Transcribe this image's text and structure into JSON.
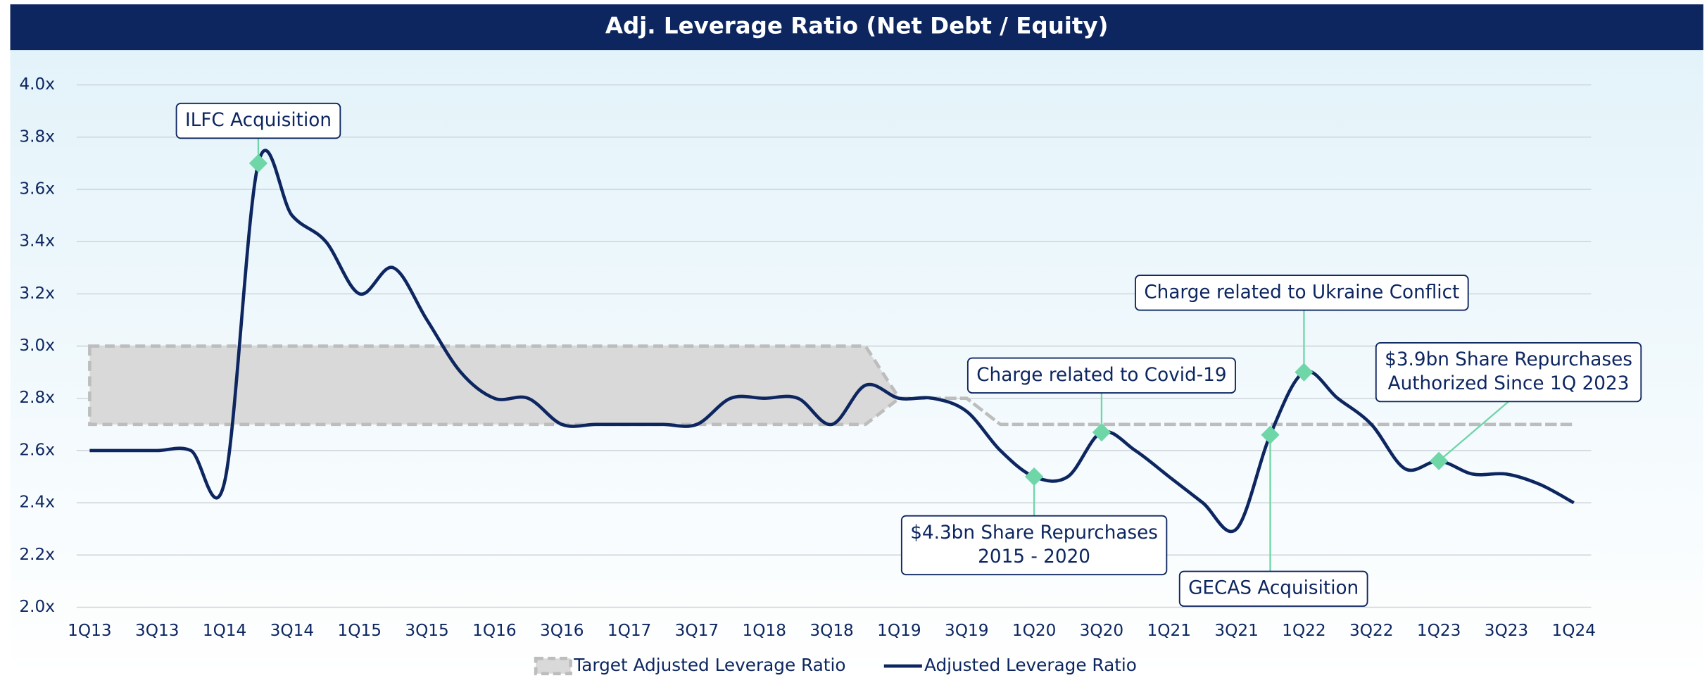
{
  "chart_data": {
    "type": "line",
    "title": "Adj. Leverage Ratio (Net Debt / Equity)",
    "categories": [
      "1Q13",
      null,
      "3Q13",
      null,
      "1Q14",
      null,
      "3Q14",
      null,
      "1Q15",
      null,
      "3Q15",
      null,
      "1Q16",
      null,
      "3Q16",
      null,
      "1Q17",
      null,
      "3Q17",
      null,
      "1Q18",
      null,
      "3Q18",
      null,
      "1Q19",
      null,
      "3Q19",
      null,
      "1Q20",
      null,
      "3Q20",
      null,
      "1Q21",
      null,
      "3Q21",
      null,
      "1Q22",
      null,
      "3Q22",
      null,
      "1Q23",
      null,
      "3Q23",
      null,
      "1Q24"
    ],
    "series": [
      {
        "name": "Target Adjusted Leverage Ratio",
        "color": "#d9d9d9",
        "values": [
          3.0,
          3.0,
          3.0,
          3.0,
          3.0,
          3.0,
          3.0,
          3.0,
          3.0,
          3.0,
          3.0,
          3.0,
          3.0,
          3.0,
          3.0,
          3.0,
          3.0,
          3.0,
          3.0,
          3.0,
          3.0,
          3.0,
          3.0,
          3.0,
          2.8,
          2.8,
          2.8,
          2.7,
          2.7,
          2.7,
          2.7,
          2.7,
          2.7,
          2.7,
          2.7,
          2.7,
          2.7,
          2.7,
          2.7,
          2.7,
          2.7,
          2.7,
          2.7,
          2.7,
          2.7
        ],
        "low": [
          2.7,
          2.7,
          2.7,
          2.7,
          2.7,
          2.7,
          2.7,
          2.7,
          2.7,
          2.7,
          2.7,
          2.7,
          2.7,
          2.7,
          2.7,
          2.7,
          2.7,
          2.7,
          2.7,
          2.7,
          2.7,
          2.7,
          2.7,
          2.7,
          2.8,
          2.8,
          2.8,
          2.7,
          2.7,
          2.7,
          2.7,
          2.7,
          2.7,
          2.7,
          2.7,
          2.7,
          2.7,
          2.7,
          2.7,
          2.7,
          2.7,
          2.7,
          2.7,
          2.7,
          2.7
        ]
      },
      {
        "name": "Adjusted Leverage Ratio",
        "color": "#0d2660",
        "values": [
          2.6,
          2.6,
          2.6,
          2.6,
          2.48,
          3.7,
          3.5,
          3.4,
          3.2,
          3.3,
          3.1,
          2.9,
          2.8,
          2.8,
          2.7,
          2.7,
          2.7,
          2.7,
          2.7,
          2.8,
          2.8,
          2.8,
          2.7,
          2.85,
          2.8,
          2.8,
          2.75,
          2.6,
          2.5,
          2.5,
          2.67,
          2.6,
          2.5,
          2.4,
          2.3,
          2.66,
          2.9,
          2.8,
          2.7,
          2.53,
          2.56,
          2.51,
          2.51,
          2.47,
          2.4
        ]
      }
    ],
    "ylim": [
      2.0,
      4.0
    ],
    "yticks": [
      {
        "value": 2.0,
        "label": "2.0x"
      },
      {
        "value": 2.2,
        "label": "2.2x"
      },
      {
        "value": 2.4,
        "label": "2.4x"
      },
      {
        "value": 2.6,
        "label": "2.6x"
      },
      {
        "value": 2.8,
        "label": "2.8x"
      },
      {
        "value": 3.0,
        "label": "3.0x"
      },
      {
        "value": 3.2,
        "label": "3.2x"
      },
      {
        "value": 3.4,
        "label": "3.4x"
      },
      {
        "value": 3.6,
        "label": "3.6x"
      },
      {
        "value": 3.8,
        "label": "3.8x"
      },
      {
        "value": 4.0,
        "label": "4.0x"
      }
    ],
    "grid": true,
    "legend": "bottom",
    "annotations": [
      [
        "ILFC Acquisition"
      ],
      [
        "Charge related to Covid-19"
      ],
      [
        "$4.3bn Share Repurchases",
        "2015 - 2020"
      ],
      [
        "GECAS Acquisition"
      ],
      [
        "Charge related to Ukraine Conflict"
      ],
      [
        "$3.9bn Share Repurchases",
        "Authorized Since 1Q 2023"
      ]
    ]
  }
}
